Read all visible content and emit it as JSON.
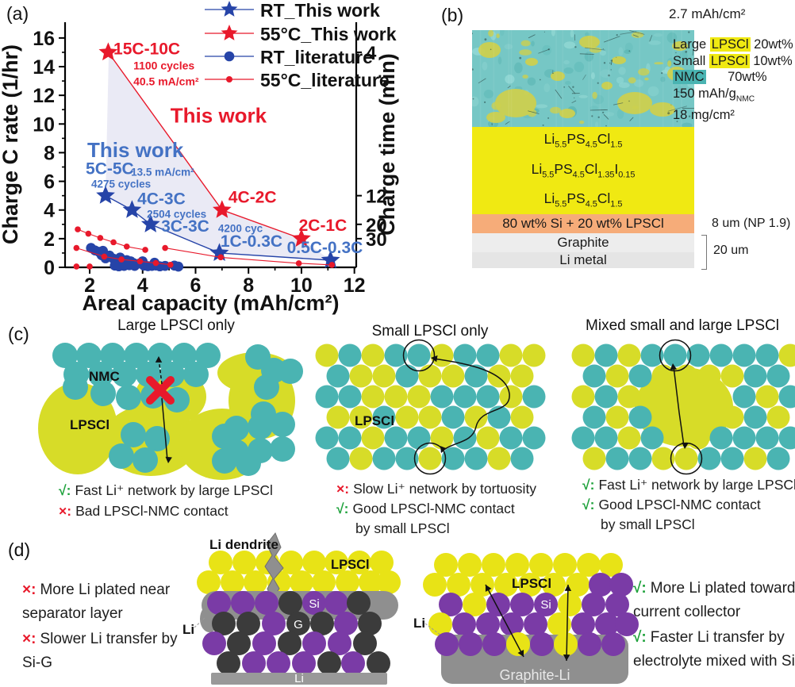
{
  "colors": {
    "red": "#e8192b",
    "blue_marker": "#2644a8",
    "blue_text": "#4472c4",
    "teal": "#4ab4b2",
    "yellow_green": "#d7dc28",
    "yellow_bright": "#e8e316",
    "purple": "#7a3ba6",
    "dark_circle": "#3b3b3b",
    "gray": "#8f8f8f",
    "orange": "#f6ac79",
    "electrolyte_yellow": "#f0e912",
    "green_check": "#1fa23c",
    "shade": "#e8e8f4",
    "sem_base": "#76c7c5",
    "sem_yellow": "#ccd04f"
  },
  "panel_a": {
    "label": "(a)"
  },
  "chart_data": {
    "type": "scatter",
    "xlabel": "Areal capacity (mAh/cm²)",
    "ylabel_left": "Charge C rate (1/hr)",
    "ylabel_right": "Charge time (min)",
    "xlim": [
      1.07,
      12.07
    ],
    "ylim": [
      0,
      17.1
    ],
    "xticks": [
      2,
      4,
      6,
      8,
      10,
      12
    ],
    "xticks_minor": [
      3,
      5,
      7,
      9,
      11
    ],
    "yticks_left": [
      0,
      2,
      4,
      6,
      8,
      10,
      12,
      14,
      16
    ],
    "yticks_left_minor": [
      1,
      3,
      5,
      7,
      9,
      11,
      13,
      15
    ],
    "yticks_right": [
      {
        "label": "4",
        "c_rate": 15
      },
      {
        "label": "12",
        "c_rate": 5
      },
      {
        "label": "20",
        "c_rate": 3
      },
      {
        "label": "30",
        "c_rate": 2
      }
    ],
    "legend": [
      {
        "label": "RT_This work",
        "marker": "star",
        "color": "blue"
      },
      {
        "label": "55°C_This work",
        "marker": "star",
        "color": "red"
      },
      {
        "label": "RT_literature",
        "marker": "dot",
        "color": "blue"
      },
      {
        "label": "55°C_literature",
        "marker": "dot-small",
        "color": "red"
      }
    ],
    "series": [
      {
        "name": "55C_this_work",
        "marker": "star",
        "color": "red",
        "line": true,
        "points": [
          [
            2.7,
            15
          ],
          [
            7.0,
            4
          ],
          [
            10.0,
            2
          ]
        ]
      },
      {
        "name": "RT_this_work",
        "marker": "star",
        "color": "blue",
        "line": true,
        "points": [
          [
            2.6,
            5
          ],
          [
            3.6,
            4
          ],
          [
            4.3,
            3
          ],
          [
            6.9,
            1
          ],
          [
            11.1,
            0.5
          ]
        ]
      },
      {
        "name": "RT_literature",
        "marker": "dot",
        "color": "blue",
        "line": false,
        "points": [
          [
            2.05,
            1.35
          ],
          [
            2.2,
            1.18
          ],
          [
            2.35,
            1.08
          ],
          [
            2.5,
            1.15
          ],
          [
            2.45,
            0.85
          ],
          [
            2.6,
            0.63
          ],
          [
            2.75,
            0.82
          ],
          [
            2.9,
            0.6
          ],
          [
            3.05,
            0.55
          ],
          [
            3.15,
            0.68
          ],
          [
            3.25,
            0.45
          ],
          [
            3.4,
            0.5
          ],
          [
            3.55,
            0.42
          ],
          [
            3.65,
            0.3
          ],
          [
            2.95,
            0.12
          ],
          [
            3.1,
            0.07
          ],
          [
            3.3,
            0.1
          ],
          [
            3.5,
            0.15
          ],
          [
            3.7,
            0.1
          ],
          [
            3.9,
            0.28
          ],
          [
            4.0,
            0.42
          ],
          [
            4.05,
            0.12
          ],
          [
            4.2,
            0.08
          ],
          [
            4.35,
            0.1
          ],
          [
            4.5,
            0.13
          ],
          [
            4.65,
            0.07
          ],
          [
            4.45,
            0.32
          ],
          [
            4.85,
            0.1
          ],
          [
            5.2,
            0.12
          ],
          [
            5.35,
            0.05
          ]
        ]
      },
      {
        "name": "RT_literature_line",
        "marker": "none",
        "color": "blue",
        "line": true,
        "points": [
          [
            2.05,
            1.35
          ],
          [
            2.35,
            1.08
          ],
          [
            2.6,
            0.63
          ],
          [
            2.9,
            0.6
          ],
          [
            3.25,
            0.45
          ],
          [
            3.55,
            0.42
          ],
          [
            3.9,
            0.28
          ],
          [
            4.2,
            0.08
          ]
        ]
      },
      {
        "name": "55C_literature_1",
        "marker": "dot-small",
        "color": "red",
        "line": true,
        "points": [
          [
            1.55,
            2.65
          ],
          [
            1.95,
            2.35
          ],
          [
            2.4,
            2.05
          ],
          [
            2.9,
            1.75
          ],
          [
            3.4,
            1.45
          ],
          [
            4.1,
            1.22
          ]
        ]
      },
      {
        "name": "55C_literature_2",
        "marker": "dot-small",
        "color": "red",
        "line": true,
        "points": [
          [
            1.5,
            1.35
          ],
          [
            2.55,
            0.75
          ],
          [
            3.2,
            0.55
          ],
          [
            3.9,
            0.42
          ],
          [
            4.5,
            0.3
          ],
          [
            5.05,
            0.18
          ]
        ]
      },
      {
        "name": "55C_literature_3",
        "marker": "dot-small",
        "color": "red",
        "line": true,
        "points": [
          [
            4.85,
            1.35
          ],
          [
            6.95,
            0.7
          ],
          [
            9.9,
            0.28
          ],
          [
            11.15,
            0.17
          ]
        ]
      },
      {
        "name": "55C_literature_dots",
        "marker": "dot-small",
        "color": "red",
        "line": false,
        "points": [
          [
            1.5,
            0.06
          ],
          [
            2.0,
            0.06
          ]
        ]
      }
    ],
    "shaded_region": [
      [
        2.72,
        15
      ],
      [
        7.0,
        4
      ],
      [
        10.0,
        2
      ],
      [
        11.1,
        0.5
      ],
      [
        6.9,
        1
      ],
      [
        4.3,
        3
      ],
      [
        3.6,
        4
      ],
      [
        2.6,
        5
      ]
    ],
    "annotations": [
      {
        "text": "15C-10C",
        "x": 2.9,
        "y": 14.85,
        "size": 21,
        "color": "red",
        "weight": 600
      },
      {
        "text": "1100 cycles",
        "x": 3.65,
        "y": 13.8,
        "size": 14,
        "color": "red",
        "weight": 600
      },
      {
        "text": "40.5 mA/cm²",
        "x": 3.65,
        "y": 12.7,
        "size": 14,
        "color": "red",
        "weight": 600
      },
      {
        "text": "This work",
        "x": 5.05,
        "y": 10.1,
        "size": 26,
        "color": "red",
        "weight": 700
      },
      {
        "text": "This work",
        "x": 1.91,
        "y": 7.7,
        "size": 26,
        "color": "blue",
        "weight": 700
      },
      {
        "text": "5C-5C",
        "x": 1.85,
        "y": 6.5,
        "size": 21,
        "color": "blue",
        "weight": 600
      },
      {
        "text": "13.5 mA/cm²",
        "x": 3.56,
        "y": 6.4,
        "size": 13.5,
        "color": "blue",
        "weight": 600
      },
      {
        "text": "4275 cycles",
        "x": 2.06,
        "y": 5.55,
        "size": 13.5,
        "color": "blue",
        "weight": 600
      },
      {
        "text": "4C-3C",
        "x": 3.8,
        "y": 4.4,
        "size": 21,
        "color": "blue",
        "weight": 600
      },
      {
        "text": "2504 cycles",
        "x": 4.16,
        "y": 3.45,
        "size": 13.5,
        "color": "blue",
        "weight": 600
      },
      {
        "text": "3C-3C",
        "x": 4.7,
        "y": 2.5,
        "size": 21,
        "color": "blue",
        "weight": 600
      },
      {
        "text": "4200 cyc",
        "x": 6.85,
        "y": 2.45,
        "size": 13.5,
        "color": "blue",
        "weight": 600
      },
      {
        "text": "1C-0.3C",
        "x": 6.94,
        "y": 1.45,
        "size": 21,
        "color": "blue",
        "weight": 600
      },
      {
        "text": "0.5C-0.3C",
        "x": 9.45,
        "y": 1.0,
        "size": 21,
        "color": "blue",
        "weight": 600
      },
      {
        "text": "4C-2C",
        "x": 7.24,
        "y": 4.5,
        "size": 21,
        "color": "red",
        "weight": 600
      },
      {
        "text": "2C-1C",
        "x": 9.9,
        "y": 2.55,
        "size": 21,
        "color": "red",
        "weight": 600
      }
    ]
  },
  "panel_b": {
    "label": "(b)",
    "capacity": "2.7 mAh/cm²",
    "sem_legend": [
      {
        "pre": "Large ",
        "hl": "LPSCl",
        "hl_style": "yellow",
        "post": " 20wt%"
      },
      {
        "pre": "Small ",
        "hl": "LPSCl",
        "hl_style": "yellow",
        "post": " 10wt%"
      },
      {
        "pre": "",
        "hl": "NMC",
        "hl_style": "teal",
        "post": "      70wt%"
      }
    ],
    "loading": [
      "150 mAh/g|NMC",
      "18 mg/cm²"
    ],
    "electrolyte_formulas": [
      "Li|5.5|PS|4.5|Cl|1.5",
      "Li|5.5|PS|4.5|Cl|1.35|I|0.15",
      "Li|5.5|PS|4.5|Cl|1.5"
    ],
    "anode_layer": "80 wt% Si + 20 wt% LPSCl",
    "anode_annotation": "8 um (NP 1.9)",
    "graphite": "Graphite",
    "li_metal": "Li metal",
    "thickness": "20 um"
  },
  "panel_c": {
    "label": "(c)",
    "diagrams": [
      {
        "title": "Large LPSCl only",
        "nmc_label": "NMC",
        "lpscl_label": "LPSCl",
        "captions": [
          {
            "mark": "√:",
            "style": "good",
            "text": "Fast Li⁺ network by large LPSCl"
          },
          {
            "mark": "×:",
            "style": "bad",
            "text": "Bad LPSCl-NMC contact"
          }
        ]
      },
      {
        "title": "Small LPSCl only",
        "lpscl_label": "LPSCl",
        "captions": [
          {
            "mark": "×:",
            "style": "bad",
            "text": "Slow Li⁺ network by tortuosity"
          },
          {
            "mark": "√:",
            "style": "good",
            "text": "Good LPSCl-NMC contact"
          },
          {
            "mark": "",
            "style": "",
            "text": "by small LPSCl"
          }
        ]
      },
      {
        "title": "Mixed small and large LPSCl",
        "captions": [
          {
            "mark": "√:",
            "style": "good",
            "text": "Fast Li⁺ network by large LPSCl"
          },
          {
            "mark": "√:",
            "style": "good",
            "text": "Good LPSCl-NMC contact"
          },
          {
            "mark": "",
            "style": "",
            "text": "by small LPSCl"
          }
        ]
      }
    ]
  },
  "panel_d": {
    "label": "(d)",
    "left": {
      "dendrite_label": "Li dendrite",
      "lpscl_label": "LPSCl",
      "si_label": "Si",
      "g_label": "G",
      "li_side_label": "Li",
      "bar_label": "Li",
      "captions": [
        {
          "mark": "×:",
          "style": "bad",
          "text": "More Li plated near separator layer"
        },
        {
          "mark": "×:",
          "style": "bad",
          "text": "Slower Li transfer by Si-G"
        }
      ]
    },
    "right": {
      "lpscl_label": "LPSCl",
      "si_label": "Si",
      "li_side_label": "Li",
      "bar_label": "Graphite-Li",
      "captions": [
        {
          "mark": "√:",
          "style": "good",
          "text": "More Li plated toward current collector"
        },
        {
          "mark": "√:",
          "style": "good",
          "text": "Faster Li transfer by electrolyte mixed with Si"
        }
      ]
    }
  }
}
